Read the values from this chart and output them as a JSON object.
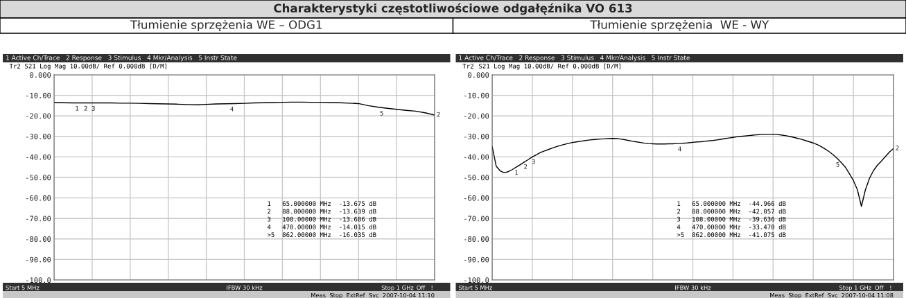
{
  "chart_data": [
    {
      "type": "line",
      "title": "Charakterystyki częstotliwościowe odgałęźnika VO 613",
      "subtitle": "Tłumienie sprzężenia WE – ODG1",
      "categories": [
        null,
        null,
        null,
        null,
        null,
        null,
        null,
        null,
        null,
        null,
        null,
        null,
        null,
        null,
        null,
        null,
        null,
        null,
        null,
        null,
        null,
        null,
        null,
        null,
        null,
        null,
        null,
        null,
        null,
        null,
        null,
        null,
        null,
        null,
        null,
        null,
        null,
        null,
        null,
        null,
        null
      ],
      "series": [
        {
          "color": "#000000",
          "values": [
            -13.5,
            -13.6,
            -13.7,
            -13.7,
            -13.7,
            -13.7,
            -13.7,
            -13.8,
            -13.8,
            -13.9,
            -14.0,
            -14.1,
            -14.2,
            -14.3,
            -14.5,
            -14.6,
            -14.4,
            -14.2,
            -14.1,
            -14.0,
            -13.9,
            -13.7,
            -13.6,
            -13.5,
            -13.4,
            -13.3,
            -13.3,
            -13.4,
            -13.4,
            -13.5,
            -13.6,
            -13.8,
            -14.0,
            -15.0,
            -15.7,
            -16.3,
            -16.8,
            -17.3,
            -17.7,
            -18.5,
            -19.6
          ]
        }
      ],
      "ylim": [
        -100,
        0
      ],
      "yticks": [
        {
          "value": 0,
          "label": "0.000"
        },
        {
          "value": -10,
          "label": "-10.00"
        },
        {
          "value": -20,
          "label": "-20.00"
        },
        {
          "value": -30,
          "label": "-30.00"
        },
        {
          "value": -40,
          "label": "-40.00"
        },
        {
          "value": -50,
          "label": "-50.00"
        },
        {
          "value": -60,
          "label": "-60.00"
        },
        {
          "value": -70,
          "label": "-70.00"
        },
        {
          "value": -80,
          "label": "-80.00"
        },
        {
          "value": -90,
          "label": "-90.00"
        },
        {
          "value": -100,
          "label": "-100.0"
        }
      ],
      "tick_labels": "y",
      "grid": true,
      "marker": "none",
      "line_style": "solid",
      "annotations": [
        "1 Active Ch/Trace   2 Response   3 Stimulus   4 Mkr/Analysis   5 Instr State",
        "Tr2",
        "S21 Log Mag 10.00dB/ Ref 0.000dB [D/M]",
        "1   65.000000 MHz  -13.675 dB",
        "2   88.000000 MHz  -13.639 dB",
        "3   108.00000 MHz  -13.686 dB",
        "4   470.00000 MHz  -14.015 dB",
        ">5  862.00000 MHz  -16.035 dB",
        "Start 5 MHz",
        "IFBW 30 kHz",
        "Stop 1 GHz",
        "Off",
        "!",
        "Meas  Stop  ExtRef  Svc  2007-10-04 11:10",
        "2",
        {
          "text": "1",
          "y": -13.675
        },
        {
          "text": "2",
          "y": -13.639
        },
        {
          "text": "3",
          "y": -13.686
        },
        {
          "text": "4",
          "y": -14.015
        },
        {
          "text": "5",
          "y": -16.035
        }
      ]
    },
    {
      "type": "line",
      "subtitle": "Tłumienie sprzężenia  WE - WY",
      "categories": [
        null,
        null,
        null,
        null,
        null,
        null,
        null,
        null,
        null,
        null,
        null,
        null,
        null,
        null,
        null,
        null,
        null,
        null,
        null,
        null,
        null,
        null,
        null,
        null,
        null,
        null,
        null,
        null,
        null,
        null,
        null,
        null,
        null,
        null,
        null,
        null,
        null,
        null,
        null,
        null,
        null,
        null,
        null,
        null,
        null,
        null,
        null,
        null,
        null,
        null,
        null,
        null,
        null,
        null,
        null,
        null,
        null,
        null,
        null,
        null,
        null,
        null,
        null,
        null,
        null,
        null,
        null,
        null,
        null,
        null,
        null,
        null,
        null,
        null,
        null,
        null,
        null,
        null,
        null,
        null,
        null,
        null,
        null,
        null,
        null,
        null,
        null,
        null,
        null,
        null,
        null,
        null,
        null,
        null,
        null,
        null,
        null,
        null,
        null,
        null,
        null
      ],
      "series": [
        {
          "color": "#000000",
          "values": [
            -34.9,
            -44.5,
            -46.8,
            -47.7,
            -47.2,
            -46.2,
            -45.0,
            -43.8,
            -42.5,
            -41.3,
            -40.0,
            -39.0,
            -37.9,
            -37.1,
            -36.4,
            -35.7,
            -35.0,
            -34.4,
            -33.9,
            -33.4,
            -33.0,
            -32.7,
            -32.4,
            -32.1,
            -31.8,
            -31.6,
            -31.4,
            -31.3,
            -31.2,
            -31.1,
            -31.0,
            -31.1,
            -31.3,
            -31.6,
            -32.0,
            -32.4,
            -32.7,
            -33.0,
            -33.3,
            -33.5,
            -33.6,
            -33.7,
            -33.7,
            -33.7,
            -33.6,
            -33.6,
            -33.5,
            -33.4,
            -33.3,
            -33.1,
            -32.9,
            -32.7,
            -32.6,
            -32.4,
            -32.2,
            -32.0,
            -31.7,
            -31.4,
            -31.1,
            -30.8,
            -30.5,
            -30.2,
            -30.0,
            -29.8,
            -29.6,
            -29.4,
            -29.2,
            -29.1,
            -29.0,
            -29.0,
            -29.0,
            -29.1,
            -29.3,
            -29.6,
            -30.0,
            -30.4,
            -30.9,
            -31.4,
            -32.0,
            -32.6,
            -33.2,
            -34.0,
            -35.0,
            -36.2,
            -37.5,
            -39.0,
            -40.8,
            -42.8,
            -45.0,
            -48.2,
            -51.5,
            -56.0,
            -64.1,
            -56.0,
            -50.5,
            -46.7,
            -44.0,
            -42.0,
            -39.8,
            -37.6,
            -35.9
          ]
        }
      ],
      "ylim": [
        -100,
        0
      ],
      "yticks": [
        {
          "value": 0,
          "label": "0.000"
        },
        {
          "value": -10,
          "label": "-10.00"
        },
        {
          "value": -20,
          "label": "-20.00"
        },
        {
          "value": -30,
          "label": "-30.00"
        },
        {
          "value": -40,
          "label": "-40.00"
        },
        {
          "value": -50,
          "label": "-50.00"
        },
        {
          "value": -60,
          "label": "-60.00"
        },
        {
          "value": -70,
          "label": "-70.00"
        },
        {
          "value": -80,
          "label": "-80.00"
        },
        {
          "value": -90,
          "label": "-90.00"
        },
        {
          "value": -100,
          "label": "-100.0"
        }
      ],
      "tick_labels": "y",
      "grid": true,
      "marker": "none",
      "line_style": "solid",
      "annotations": [
        "1 Active Ch/Trace   2 Response   3 Stimulus   4 Mkr/Analysis   5 Instr State",
        "Tr2",
        "S21 Log Mag 10.00dB/ Ref 0.000dB [D/M]",
        "1   65.000000 MHz  -44.966 dB",
        "2   88.000000 MHz  -42.057 dB",
        "3   108.00000 MHz  -39.636 dB",
        "4   470.00000 MHz  -33.470 dB",
        ">5  862.00000 MHz  -41.075 dB",
        "Start 5 MHz",
        "IFBW 30 kHz",
        "Stop 1 GHz",
        "Off",
        "!",
        "Meas  Stop  ExtRef  Svc  2007-10-04 11:08",
        "2",
        {
          "text": "1",
          "y": -44.966
        },
        {
          "text": "2",
          "y": -42.057
        },
        {
          "text": "3",
          "y": -39.636
        },
        {
          "text": "4",
          "y": -33.47
        },
        {
          "text": "5",
          "y": -41.075
        }
      ]
    }
  ]
}
